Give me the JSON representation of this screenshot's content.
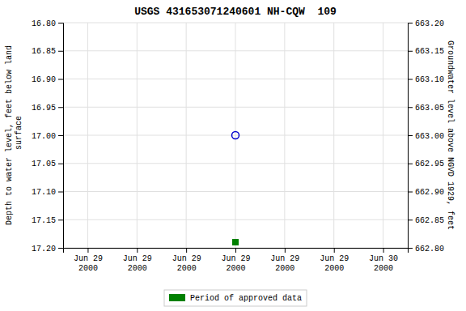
{
  "chart_data": {
    "type": "scatter",
    "title": "USGS 431653071240601 NH-CQW  109",
    "ylabel": "Depth to water level, feet below land\n surface",
    "y2label": "Groundwater level above NGVD 1929, feet",
    "categories": [
      "Jun 29\n2000",
      "Jun 29\n2000",
      "Jun 29\n2000",
      "Jun 29\n2000",
      "Jun 29\n2000",
      "Jun 29\n2000",
      "Jun 30\n2000"
    ],
    "series": [
      {
        "color": "#0000cc",
        "marker": "circle-open",
        "values": [
          null,
          null,
          null,
          17.0,
          null,
          null,
          null
        ]
      },
      {
        "name": "Period of approved data",
        "color": "#008000",
        "marker": "square",
        "values": [
          null,
          null,
          null,
          17.19,
          null,
          null,
          null
        ]
      }
    ],
    "ylim": [
      17.2,
      16.8
    ],
    "yticks": [
      {
        "value": 16.8,
        "label": "16.80"
      },
      {
        "value": 16.85,
        "label": "16.85"
      },
      {
        "value": 16.9,
        "label": "16.90"
      },
      {
        "value": 16.95,
        "label": "16.95"
      },
      {
        "value": 17.0,
        "label": "17.00"
      },
      {
        "value": 17.05,
        "label": "17.05"
      },
      {
        "value": 17.1,
        "label": "17.10"
      },
      {
        "value": 17.15,
        "label": "17.15"
      },
      {
        "value": 17.2,
        "label": "17.20"
      }
    ],
    "y2lim": [
      662.8,
      663.2
    ],
    "y2ticks": [
      {
        "value": 663.2,
        "label": "663.20"
      },
      {
        "value": 663.15,
        "label": "663.15"
      },
      {
        "value": 663.1,
        "label": "663.10"
      },
      {
        "value": 663.05,
        "label": "663.05"
      },
      {
        "value": 663.0,
        "label": "663.00"
      },
      {
        "value": 662.95,
        "label": "662.95"
      },
      {
        "value": 662.9,
        "label": "662.90"
      },
      {
        "value": 662.85,
        "label": "662.85"
      },
      {
        "value": 662.8,
        "label": "662.80"
      }
    ],
    "grid": true,
    "legend": "bottom"
  }
}
